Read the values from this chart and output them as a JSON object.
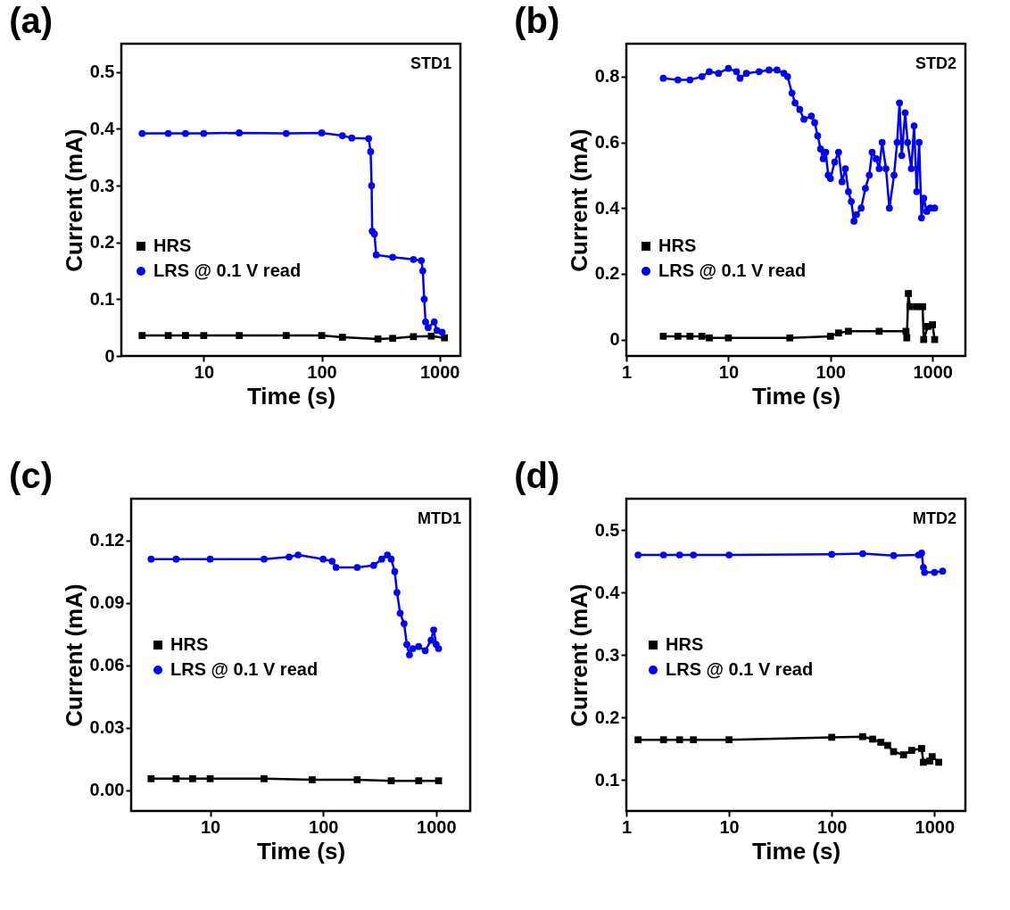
{
  "chart_data": [
    {
      "type": "line",
      "title": "(a)",
      "xlabel": "Time (s)",
      "ylabel": "Current (mA)",
      "annotations": [
        "STD1"
      ],
      "log": "x",
      "xlim": [
        2,
        1500
      ],
      "xticks": [
        10,
        100,
        1000
      ],
      "ylim": [
        0,
        0.55
      ],
      "yticks": [
        0,
        0.1,
        0.2,
        0.3,
        0.4,
        0.5
      ],
      "legend": "bottom left",
      "line_style": "solid",
      "series": [
        {
          "name": "HRS",
          "color": "#000000",
          "marker": "square",
          "x": [
            3,
            5,
            7,
            10,
            20,
            50,
            100,
            150,
            300,
            400,
            600,
            850,
            1100
          ],
          "values": [
            0.036,
            0.036,
            0.036,
            0.036,
            0.036,
            0.036,
            0.036,
            0.033,
            0.03,
            0.031,
            0.034,
            0.035,
            0.032
          ]
        },
        {
          "name": "LRS @ 0.1 V read",
          "color": "#0000ff",
          "marker": "circle",
          "x": [
            3,
            5,
            7,
            10,
            20,
            50,
            100,
            150,
            180,
            250,
            260,
            265,
            268,
            280,
            290,
            400,
            600,
            700,
            720,
            740,
            760,
            800,
            900,
            950,
            1050
          ],
          "values": [
            0.392,
            0.392,
            0.392,
            0.392,
            0.393,
            0.392,
            0.393,
            0.388,
            0.384,
            0.383,
            0.36,
            0.3,
            0.22,
            0.215,
            0.178,
            0.174,
            0.17,
            0.168,
            0.15,
            0.1,
            0.06,
            0.05,
            0.06,
            0.045,
            0.042
          ]
        }
      ]
    },
    {
      "type": "line",
      "title": "(b)",
      "xlabel": "Time (s)",
      "ylabel": "Current (mA)",
      "annotations": [
        "STD2"
      ],
      "log": "x",
      "xlim": [
        1,
        2100
      ],
      "xticks": [
        1,
        10,
        100,
        1000
      ],
      "ylim": [
        -0.05,
        0.9
      ],
      "yticks": [
        0,
        0.2,
        0.4,
        0.6,
        0.8
      ],
      "legend": "bottom left",
      "line_style": "solid",
      "series": [
        {
          "name": "HRS",
          "color": "#000000",
          "marker": "square",
          "x": [
            2.3,
            3.2,
            4.2,
            5.5,
            6.5,
            10,
            40,
            100,
            120,
            150,
            300,
            550,
            560,
            580,
            600,
            700,
            800,
            820,
            900,
            1000,
            1050
          ],
          "values": [
            0.01,
            0.01,
            0.01,
            0.01,
            0.005,
            0.005,
            0.005,
            0.01,
            0.02,
            0.025,
            0.025,
            0.025,
            0.005,
            0.14,
            0.1,
            0.1,
            0.1,
            0,
            0.04,
            0.045,
            0
          ]
        },
        {
          "name": "LRS @ 0.1 V read",
          "color": "#0000ff",
          "marker": "circle",
          "x": [
            2.3,
            3.2,
            4.2,
            5.5,
            6.5,
            8,
            10,
            12,
            13,
            15,
            20,
            25,
            30,
            35,
            38,
            42,
            45,
            50,
            55,
            65,
            70,
            75,
            80,
            85,
            90,
            95,
            100,
            110,
            120,
            130,
            140,
            150,
            160,
            170,
            180,
            200,
            220,
            240,
            256,
            280,
            300,
            321,
            350,
            378,
            420,
            450,
            475,
            500,
            540,
            570,
            620,
            660,
            700,
            740,
            780,
            820,
            880,
            950,
            1050
          ],
          "values": [
            0.795,
            0.79,
            0.79,
            0.8,
            0.815,
            0.81,
            0.825,
            0.815,
            0.795,
            0.81,
            0.815,
            0.82,
            0.82,
            0.81,
            0.8,
            0.75,
            0.72,
            0.7,
            0.67,
            0.68,
            0.66,
            0.62,
            0.58,
            0.55,
            0.57,
            0.5,
            0.49,
            0.54,
            0.57,
            0.48,
            0.52,
            0.45,
            0.42,
            0.36,
            0.38,
            0.4,
            0.46,
            0.5,
            0.57,
            0.55,
            0.52,
            0.6,
            0.52,
            0.4,
            0.5,
            0.6,
            0.72,
            0.56,
            0.69,
            0.6,
            0.52,
            0.65,
            0.45,
            0.6,
            0.37,
            0.43,
            0.39,
            0.4,
            0.4
          ]
        }
      ]
    },
    {
      "type": "line",
      "title": "(c)",
      "xlabel": "Time (s)",
      "ylabel": "Current (mA)",
      "annotations": [
        "MTD1"
      ],
      "log": "x",
      "xlim": [
        2,
        2000
      ],
      "xticks": [
        10,
        100,
        1000
      ],
      "ylim": [
        -0.01,
        0.14
      ],
      "yticks": [
        {
          "value": 0,
          "label": "0.00"
        },
        {
          "value": 0.03,
          "label": "0.03"
        },
        {
          "value": 0.06,
          "label": "0.06"
        },
        {
          "value": 0.09,
          "label": "0.09"
        },
        {
          "value": 0.12,
          "label": "0.12"
        }
      ],
      "legend": "left",
      "line_style": "solid",
      "series": [
        {
          "name": "HRS",
          "color": "#000000",
          "marker": "square",
          "x": [
            3,
            5,
            7,
            10,
            30,
            80,
            200,
            400,
            700,
            1050
          ],
          "values": [
            0.0055,
            0.0055,
            0.0055,
            0.0055,
            0.0055,
            0.005,
            0.005,
            0.0045,
            0.0045,
            0.0045
          ]
        },
        {
          "name": "LRS @ 0.1 V read",
          "color": "#0000ff",
          "marker": "circle",
          "x": [
            3,
            5,
            10,
            30,
            50,
            60,
            100,
            120,
            130,
            200,
            280,
            330,
            370,
            400,
            430,
            450,
            480,
            520,
            550,
            580,
            620,
            700,
            800,
            900,
            950,
            1000,
            1050
          ],
          "values": [
            0.111,
            0.111,
            0.111,
            0.111,
            0.112,
            0.113,
            0.111,
            0.11,
            0.107,
            0.107,
            0.108,
            0.111,
            0.113,
            0.111,
            0.105,
            0.095,
            0.085,
            0.08,
            0.07,
            0.065,
            0.068,
            0.069,
            0.067,
            0.072,
            0.077,
            0.07,
            0.068
          ]
        }
      ]
    },
    {
      "type": "line",
      "title": "(d)",
      "xlabel": "Time (s)",
      "ylabel": "Current (mA)",
      "annotations": [
        "MTD2"
      ],
      "log": "x",
      "xlim": [
        1,
        2000
      ],
      "xticks": [
        1,
        10,
        100,
        1000
      ],
      "ylim": [
        0.05,
        0.55
      ],
      "yticks": [
        0.1,
        0.2,
        0.3,
        0.4,
        0.5
      ],
      "legend": "left",
      "line_style": "solid",
      "series": [
        {
          "name": "HRS",
          "color": "#000000",
          "marker": "square",
          "x": [
            1.3,
            2.3,
            3.3,
            4.5,
            10,
            100,
            200,
            250,
            300,
            350,
            400,
            500,
            600,
            750,
            780,
            900,
            950,
            1100
          ],
          "values": [
            0.164,
            0.164,
            0.164,
            0.164,
            0.164,
            0.168,
            0.169,
            0.165,
            0.16,
            0.155,
            0.145,
            0.14,
            0.147,
            0.15,
            0.128,
            0.13,
            0.137,
            0.128
          ]
        },
        {
          "name": "LRS @ 0.1 V read",
          "color": "#0000ff",
          "marker": "circle",
          "x": [
            1.3,
            2.3,
            3.3,
            4.5,
            10,
            100,
            200,
            400,
            700,
            750,
            780,
            800,
            1000,
            1200
          ],
          "values": [
            0.46,
            0.46,
            0.46,
            0.46,
            0.46,
            0.461,
            0.462,
            0.459,
            0.46,
            0.463,
            0.44,
            0.432,
            0.432,
            0.434
          ]
        }
      ]
    }
  ]
}
